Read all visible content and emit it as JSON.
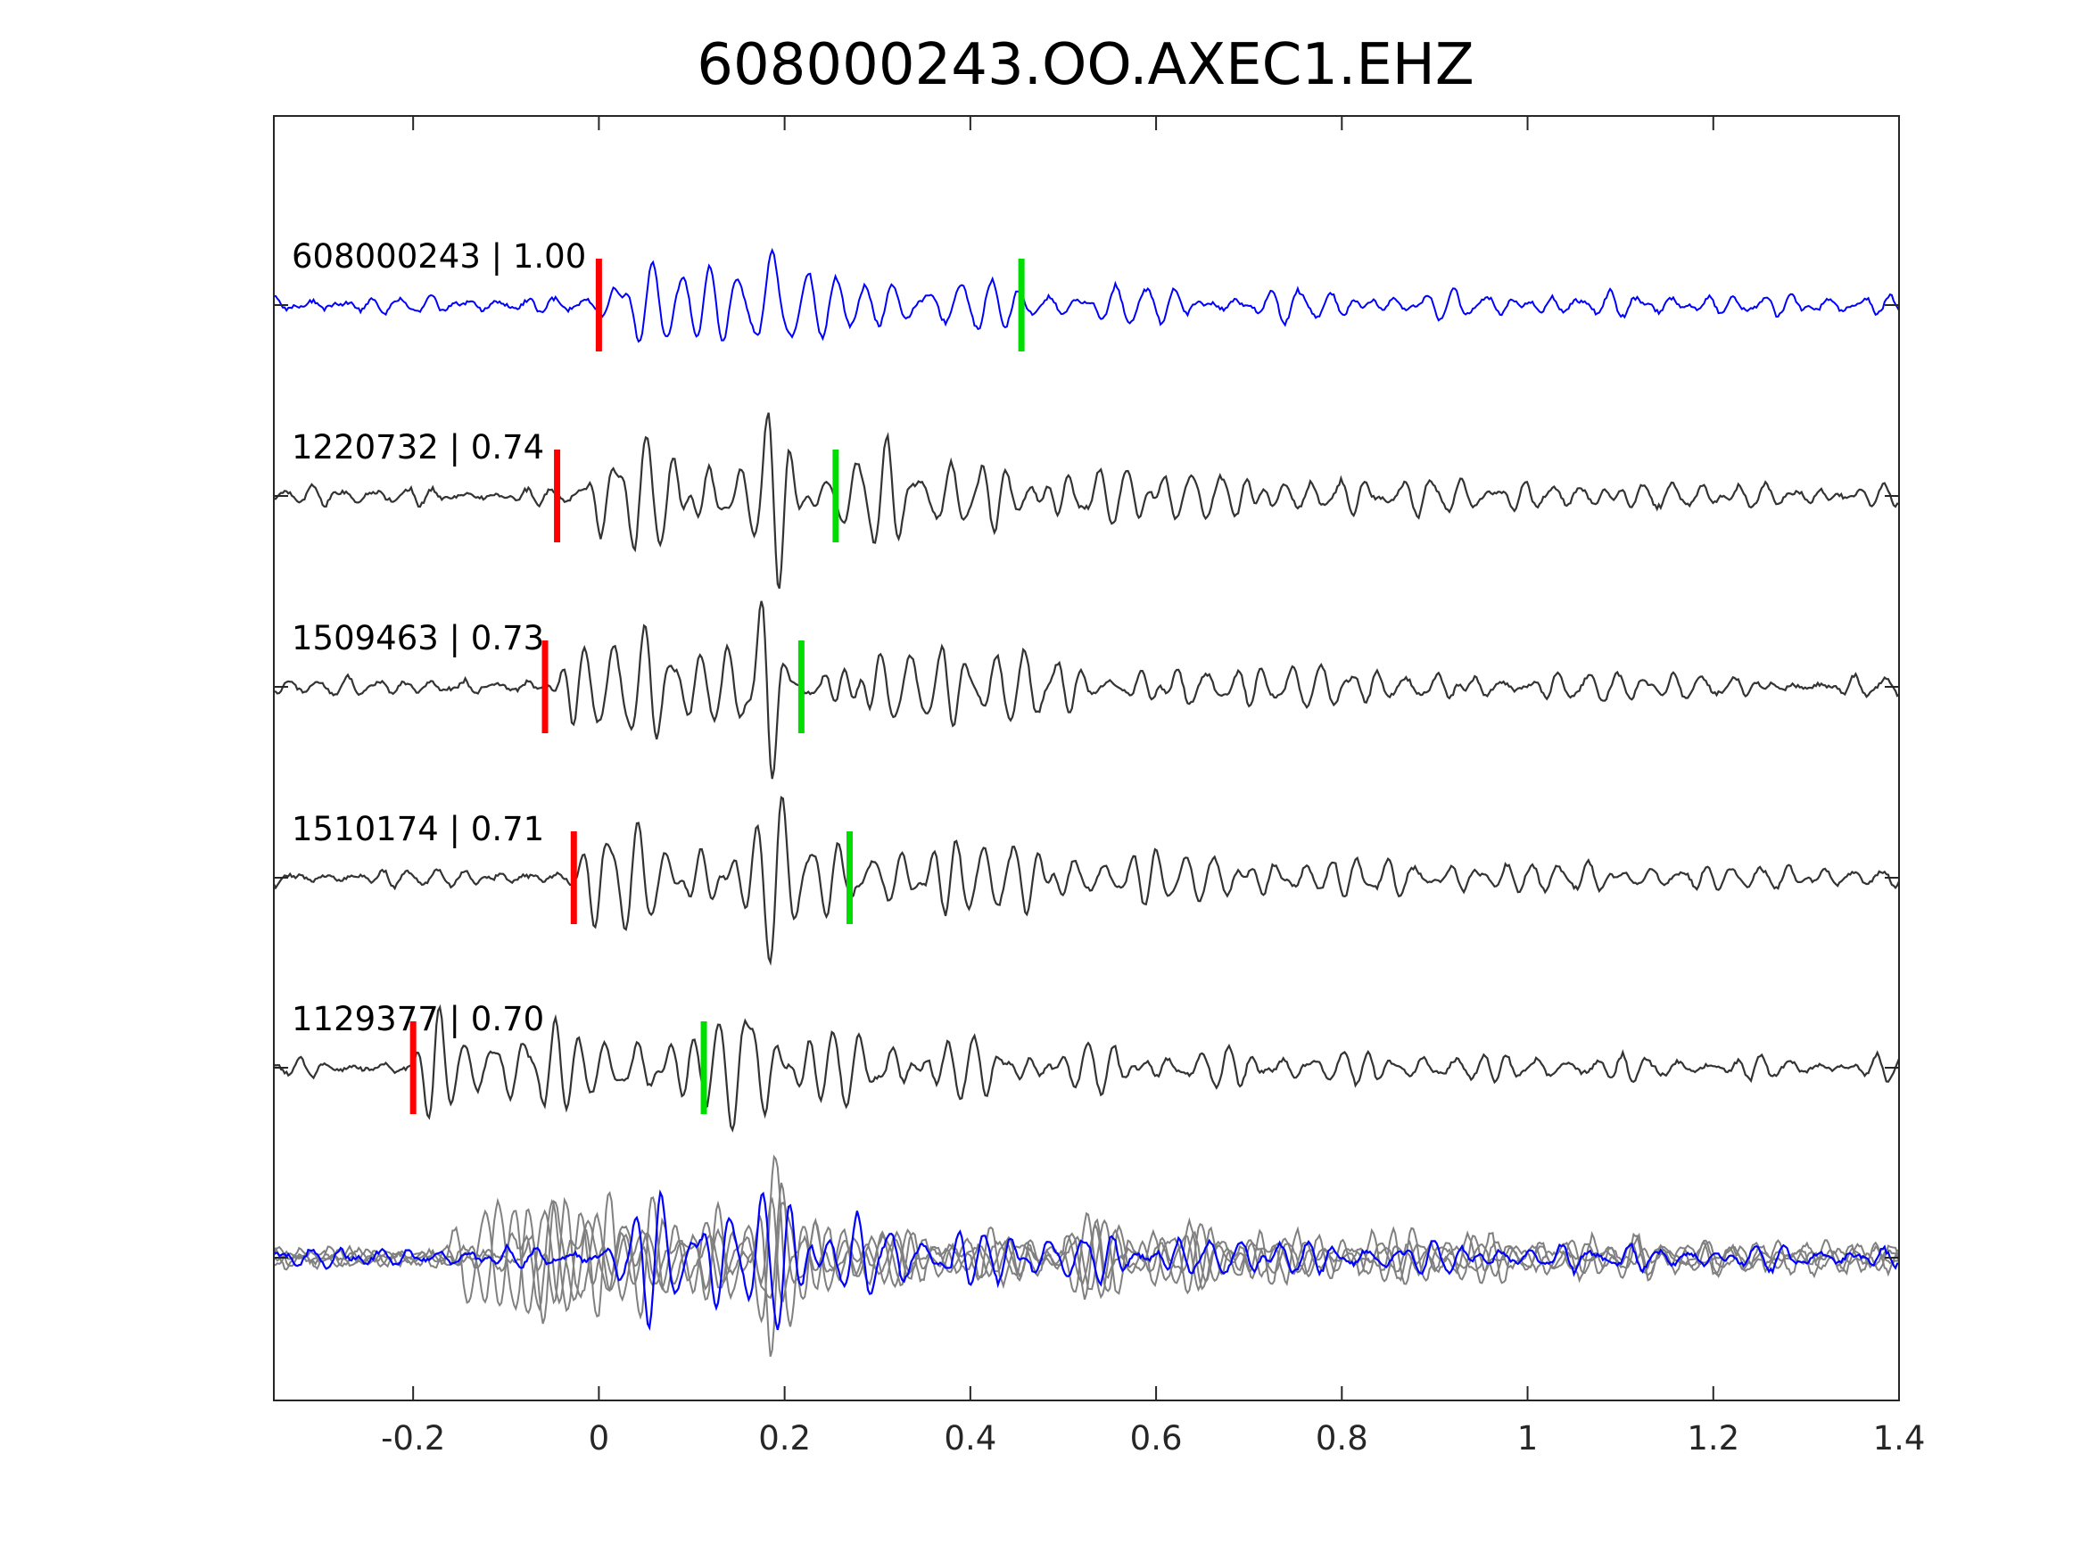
{
  "chart_data": {
    "type": "line",
    "title": "608000243.OO.AXEC1.EHZ",
    "xlabel": "",
    "ylabel": "",
    "xlim": [
      -0.35,
      1.4
    ],
    "xticks": [
      -0.2,
      0,
      0.2,
      0.4,
      0.6,
      0.8,
      1,
      1.2,
      1.4
    ],
    "xtick_labels": [
      "-0.2",
      "0",
      "0.2",
      "0.4",
      "0.6",
      "0.8",
      "1",
      "1.2",
      "1.4"
    ],
    "grid": false,
    "colors": {
      "master": "#0000ff",
      "match": "#333333",
      "stack": "#808080",
      "p_pick": "#ff0000",
      "s_pick": "#00dd00",
      "axes": "#262626"
    },
    "traces": [
      {
        "label": "608000243 | 1.00",
        "event": "608000243",
        "cc": 1.0,
        "p_pick": 0.0,
        "s_pick": 0.455,
        "onset": 0.0,
        "master": true
      },
      {
        "label": "1220732 | 0.74",
        "event": "1220732",
        "cc": 0.74,
        "p_pick": -0.045,
        "s_pick": 0.255,
        "onset": -0.025,
        "master": false
      },
      {
        "label": "1509463 | 0.73",
        "event": "1509463",
        "cc": 0.73,
        "p_pick": -0.058,
        "s_pick": 0.218,
        "onset": -0.055,
        "master": false
      },
      {
        "label": "1510174 | 0.71",
        "event": "1510174",
        "cc": 0.71,
        "p_pick": -0.027,
        "s_pick": 0.27,
        "onset": -0.025,
        "master": false
      },
      {
        "label": "1129377 | 0.70",
        "event": "1129377",
        "cc": 0.7,
        "p_pick": -0.2,
        "s_pick": 0.113,
        "onset": -0.2,
        "master": false
      }
    ],
    "overlay": {
      "description_visible": false,
      "aligned_on": 0.0
    }
  }
}
